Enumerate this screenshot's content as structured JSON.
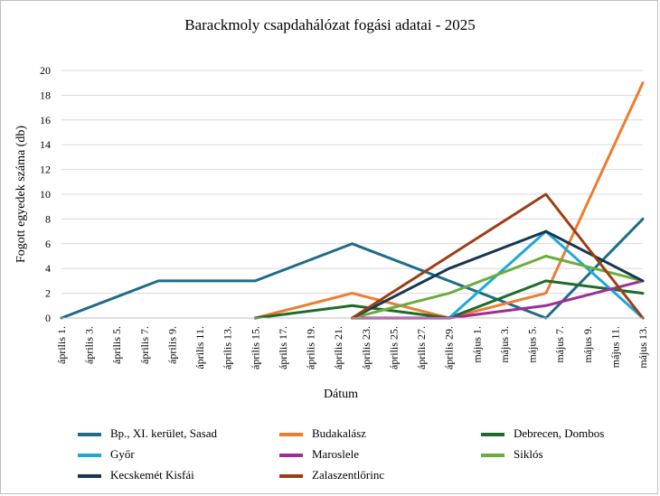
{
  "chart_data": {
    "type": "line",
    "title": "Barackmoly csapdahálózat fogási adatai - 2025",
    "xlabel": "Dátum",
    "ylabel": "Fogott egyedek száma (db)",
    "ylim": [
      0,
      20
    ],
    "yticks": [
      0,
      2,
      4,
      6,
      8,
      10,
      12,
      14,
      16,
      18,
      20
    ],
    "categories": [
      "április 1.",
      "április 3.",
      "április 5.",
      "április 7.",
      "április 9.",
      "április 11.",
      "április 13.",
      "április 15.",
      "április 17.",
      "április 19.",
      "április 21.",
      "április 23.",
      "április 25.",
      "április 27.",
      "április 29.",
      "május 1.",
      "május 3.",
      "május 5.",
      "május 7.",
      "május 9.",
      "május 11.",
      "május 13."
    ],
    "grid": "horizontal",
    "legend_position": "bottom",
    "series": [
      {
        "name": "Bp., XI. kerület, Sasad",
        "color": "#1f6b8a",
        "points": [
          [
            "április 1.",
            0
          ],
          [
            "április 8.",
            3
          ],
          [
            "április 15.",
            3
          ],
          [
            "április 22.",
            6
          ],
          [
            "április 29.",
            3
          ],
          [
            "május 6.",
            0
          ],
          [
            "május 13.",
            8
          ]
        ]
      },
      {
        "name": "Budakalász",
        "color": "#ed7d31",
        "points": [
          [
            "április 15.",
            0
          ],
          [
            "április 22.",
            2
          ],
          [
            "április 29.",
            0
          ],
          [
            "május 6.",
            2
          ],
          [
            "május 13.",
            19
          ]
        ]
      },
      {
        "name": "Debrecen, Dombos",
        "color": "#1e6b2a",
        "points": [
          [
            "április 15.",
            0
          ],
          [
            "április 22.",
            1
          ],
          [
            "április 29.",
            0
          ],
          [
            "május 6.",
            3
          ],
          [
            "május 13.",
            2
          ]
        ]
      },
      {
        "name": "Győr",
        "color": "#1ea7d9",
        "points": [
          [
            "április 29.",
            0
          ],
          [
            "május 6.",
            7
          ],
          [
            "május 13.",
            0
          ]
        ]
      },
      {
        "name": "Maroslele",
        "color": "#9b2f94",
        "points": [
          [
            "április 22.",
            0
          ],
          [
            "április 29.",
            0
          ],
          [
            "május 6.",
            1
          ],
          [
            "május 13.",
            3
          ]
        ]
      },
      {
        "name": "Siklós",
        "color": "#6aad3f",
        "points": [
          [
            "április 22.",
            0
          ],
          [
            "április 29.",
            2
          ],
          [
            "május 6.",
            5
          ],
          [
            "május 13.",
            3
          ]
        ]
      },
      {
        "name": "Kecskemét Kisfái",
        "color": "#17374f",
        "points": [
          [
            "április 22.",
            0
          ],
          [
            "április 29.",
            4
          ],
          [
            "május 6.",
            7
          ],
          [
            "május 13.",
            3
          ]
        ]
      },
      {
        "name": "Zalaszentlőrinc",
        "color": "#9c3e14",
        "points": [
          [
            "április 22.",
            0
          ],
          [
            "április 29.",
            5
          ],
          [
            "május 6.",
            10
          ],
          [
            "május 13.",
            0
          ]
        ]
      }
    ]
  }
}
